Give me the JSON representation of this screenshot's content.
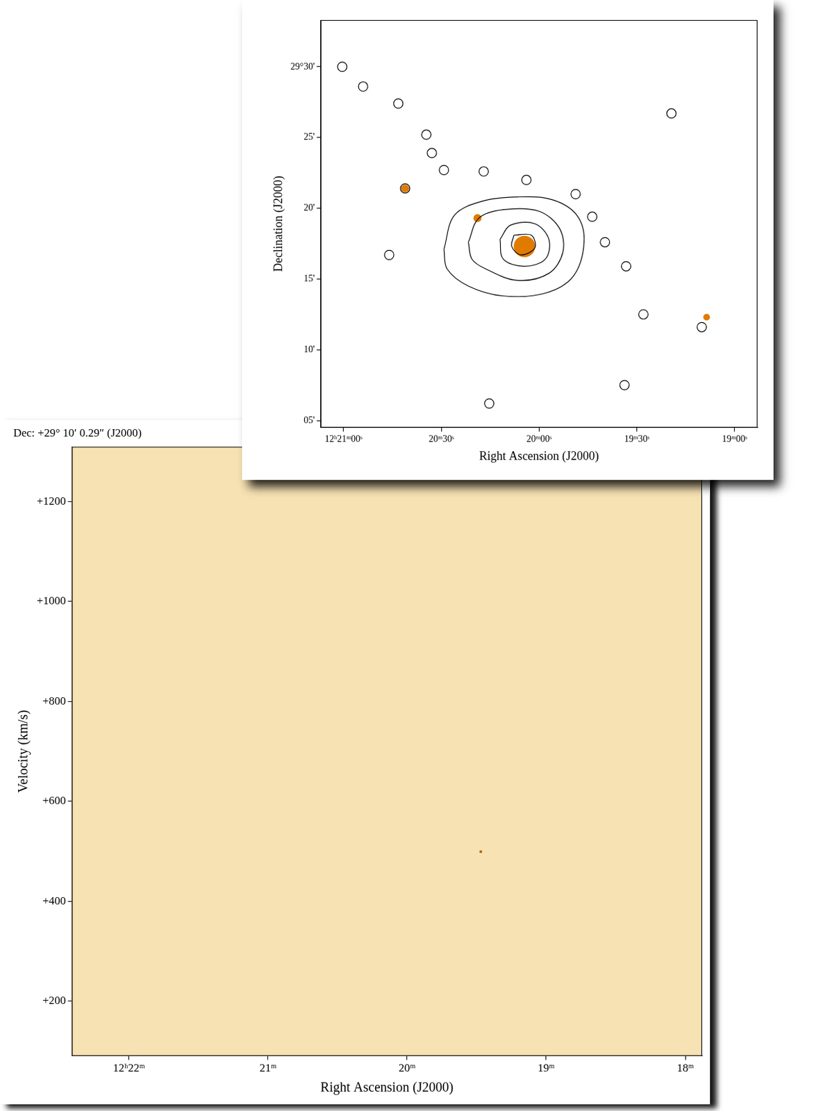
{
  "chart_data": [
    {
      "type": "contour",
      "x_label": "Right Ascension (J2000)",
      "y_label": "Declination (J2000)",
      "xlim": [
        1267,
        1133
      ],
      "xticks": [
        {
          "value": 1260,
          "label": "12ʰ21ᵐ00ˢ"
        },
        {
          "value": 1230,
          "label": "20ᵐ30ˢ"
        },
        {
          "value": 1200,
          "label": "20ᵐ00ˢ"
        },
        {
          "value": 1170,
          "label": "19ᵐ30ˢ"
        },
        {
          "value": 1140,
          "label": "19ᵐ00ˢ"
        }
      ],
      "ylim": [
        4.5,
        33.3
      ],
      "yticks": [
        {
          "value": 30,
          "label": "29°30'"
        },
        {
          "value": 25,
          "label": "25'"
        },
        {
          "value": 20,
          "label": "20'"
        },
        {
          "value": 15,
          "label": "15'"
        },
        {
          "value": 10,
          "label": "10'"
        },
        {
          "value": 5,
          "label": "05'"
        }
      ],
      "color": "#000000",
      "contours": [
        [
          [
            1229.2,
            17.1
          ],
          [
            1226.0,
            19.5
          ],
          [
            1217.4,
            20.5
          ],
          [
            1206.7,
            20.8
          ],
          [
            1195.9,
            20.6
          ],
          [
            1188.4,
            19.5
          ],
          [
            1186.2,
            17.6
          ],
          [
            1189.5,
            15.2
          ],
          [
            1198.1,
            14.0
          ],
          [
            1211.0,
            13.8
          ],
          [
            1221.7,
            14.5
          ],
          [
            1228.2,
            15.7
          ]
        ],
        [
          [
            1221.7,
            17.6
          ],
          [
            1218.5,
            19.3
          ],
          [
            1211.0,
            19.9
          ],
          [
            1200.2,
            19.8
          ],
          [
            1193.8,
            18.6
          ],
          [
            1192.7,
            16.9
          ],
          [
            1197.0,
            15.4
          ],
          [
            1206.7,
            14.9
          ],
          [
            1216.3,
            15.7
          ],
          [
            1220.6,
            16.4
          ]
        ],
        [
          [
            1212.0,
            17.8
          ],
          [
            1208.8,
            18.8
          ],
          [
            1201.3,
            18.9
          ],
          [
            1197.0,
            17.8
          ],
          [
            1198.1,
            16.4
          ],
          [
            1204.5,
            15.9
          ],
          [
            1211.0,
            16.4
          ]
        ],
        [
          [
            1207.7,
            18.1
          ],
          [
            1202.4,
            18.1
          ],
          [
            1201.3,
            17.2
          ],
          [
            1205.6,
            16.7
          ],
          [
            1208.4,
            17.3
          ]
        ]
      ],
      "clouds": [
        [
          1260.4,
          30.0
        ],
        [
          1254.0,
          28.6
        ],
        [
          1243.2,
          27.4
        ],
        [
          1234.6,
          25.2
        ],
        [
          1232.9,
          23.9
        ],
        [
          1229.2,
          22.7
        ],
        [
          1217.0,
          22.6
        ],
        [
          1203.9,
          22.0
        ],
        [
          1188.8,
          21.0
        ],
        [
          1183.7,
          19.4
        ],
        [
          1179.8,
          17.6
        ],
        [
          1173.3,
          15.9
        ],
        [
          1168.0,
          12.5
        ],
        [
          1150.1,
          11.6
        ],
        [
          1159.4,
          26.7
        ],
        [
          1246.0,
          16.7
        ],
        [
          1215.3,
          6.2
        ],
        [
          1173.8,
          7.5
        ],
        [
          1241.1,
          21.4
        ]
      ],
      "optical_sources": [
        [
          1204.5,
          17.3
        ],
        [
          1241.1,
          21.4
        ],
        [
          1218.9,
          19.3
        ],
        [
          1148.6,
          12.3
        ]
      ],
      "optical_color": "#e07b00"
    },
    {
      "type": "position_velocity",
      "title": "Dec: +29° 10′ 0.29″ (J2000)",
      "x_label": "Right Ascension (J2000)",
      "y_label": "Velocity (km/s)",
      "xlim": [
        22.41,
        17.88
      ],
      "xticks": [
        {
          "value": 22,
          "label": "12ʰ22ᵐ"
        },
        {
          "value": 21,
          "label": "21ᵐ"
        },
        {
          "value": 20,
          "label": "20ᵐ"
        },
        {
          "value": 19,
          "label": "19ᵐ"
        },
        {
          "value": 18,
          "label": "18ᵐ"
        }
      ],
      "ylim": [
        90,
        1310
      ],
      "yticks": [
        {
          "value": 200,
          "label": "+200"
        },
        {
          "value": 400,
          "label": "+400"
        },
        {
          "value": 600,
          "label": "+600"
        },
        {
          "value": 800,
          "label": "+800"
        },
        {
          "value": 1000,
          "label": "+1000"
        },
        {
          "value": 1200,
          "label": "+1200"
        }
      ],
      "color": "#f7e2b4",
      "points": [
        [
          19.47,
          499
        ]
      ],
      "point_color": "#b86a10"
    }
  ]
}
